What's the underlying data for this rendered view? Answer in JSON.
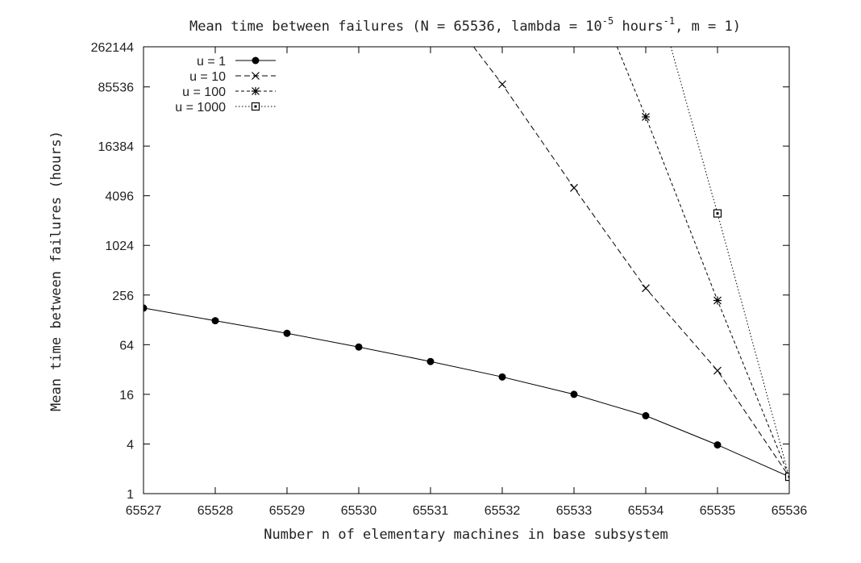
{
  "chart_data": {
    "type": "line",
    "title": {
      "prefix": "Mean time between failures (N = 65536, lambda = 10",
      "exp1": "-5",
      "middle": " hours",
      "exp2": "-1",
      "suffix": ", m = 1)"
    },
    "xlabel": "Number n of elementary machines in base subsystem",
    "ylabel": "Mean time between failures (hours)",
    "x_scale": "linear",
    "y_scale": "log2",
    "xlim": [
      65527,
      65536
    ],
    "ylim": [
      1,
      262144
    ],
    "x_ticks": [
      65527,
      65528,
      65529,
      65530,
      65531,
      65532,
      65533,
      65534,
      65535,
      65536
    ],
    "y_ticks": [
      1,
      4,
      16,
      64,
      256,
      1024,
      4096,
      16384,
      85536,
      262144
    ],
    "y_tick_labels": [
      "1",
      "4",
      "16",
      "64",
      "256",
      "1024",
      "4096",
      "16384",
      "85536",
      "262144"
    ],
    "grid": false,
    "legend_position": "top-left",
    "series": [
      {
        "name": "u = 1",
        "marker": "filled-circle",
        "dash": "solid",
        "x": [
          65527,
          65528,
          65529,
          65530,
          65531,
          65532,
          65533,
          65534,
          65535,
          65536
        ],
        "y": [
          178,
          125,
          88,
          60,
          40,
          26,
          16,
          8.8,
          3.9,
          1.6
        ]
      },
      {
        "name": "u = 10",
        "marker": "cross",
        "dash": "dashed",
        "x": [
          65531.6,
          65532,
          65533,
          65534,
          65535,
          65536
        ],
        "y": [
          262144,
          92000,
          5100,
          310,
          31,
          1.6
        ]
      },
      {
        "name": "u = 100",
        "marker": "star",
        "dash": "short-dashed",
        "x": [
          65533.6,
          65534,
          65535,
          65536
        ],
        "y": [
          262144,
          37000,
          220,
          1.6
        ]
      },
      {
        "name": "u = 1000",
        "marker": "open-square",
        "dash": "dotted",
        "x": [
          65534.35,
          65535,
          65536
        ],
        "y": [
          262144,
          2500,
          1.6
        ]
      }
    ]
  }
}
